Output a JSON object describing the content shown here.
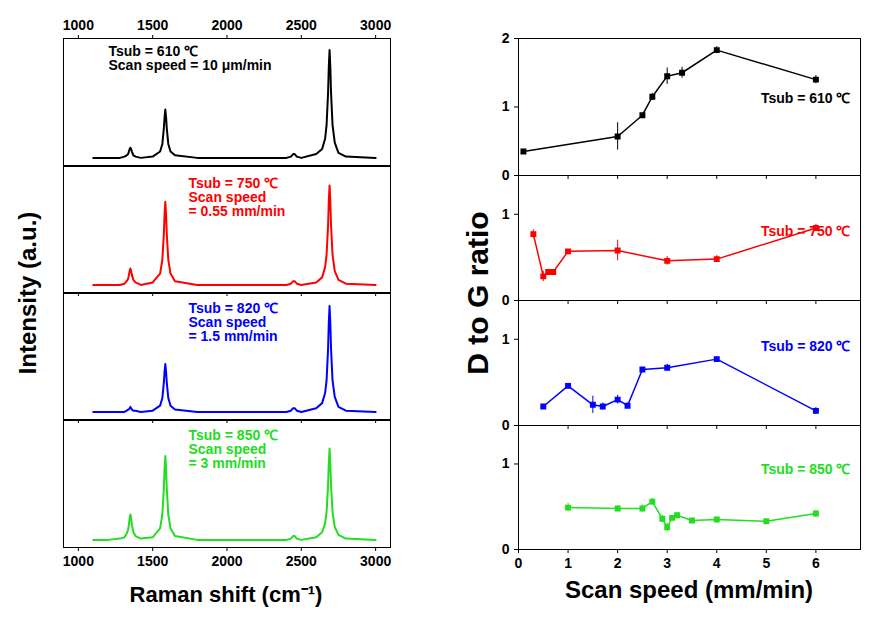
{
  "chart_data": [
    {
      "type": "line",
      "ylabel": "Intensity (a.u.)",
      "annotation": [
        "Tsub = 610 ℃",
        "Scan speed = 10 μm/min"
      ],
      "color": "#000000",
      "line_style": "solid",
      "x": [
        1100,
        1200,
        1280,
        1310,
        1325,
        1335,
        1340,
        1345,
        1350,
        1355,
        1360,
        1370,
        1385,
        1420,
        1500,
        1550,
        1565,
        1575,
        1580,
        1585,
        1590,
        1595,
        1605,
        1620,
        1650,
        1800,
        2000,
        2200,
        2400,
        2430,
        2445,
        2455,
        2470,
        2500,
        2600,
        2640,
        2660,
        2670,
        2680,
        2685,
        2690,
        2695,
        2700,
        2710,
        2725,
        2750,
        2800,
        3000
      ],
      "values": [
        0.06,
        0.06,
        0.06,
        0.07,
        0.08,
        0.09,
        0.11,
        0.13,
        0.14,
        0.13,
        0.11,
        0.08,
        0.07,
        0.06,
        0.07,
        0.11,
        0.17,
        0.29,
        0.38,
        0.44,
        0.38,
        0.29,
        0.17,
        0.11,
        0.08,
        0.06,
        0.06,
        0.06,
        0.06,
        0.07,
        0.09,
        0.09,
        0.07,
        0.06,
        0.09,
        0.13,
        0.21,
        0.32,
        0.57,
        0.78,
        0.91,
        0.78,
        0.57,
        0.32,
        0.18,
        0.1,
        0.07,
        0.06
      ],
      "xlim": [
        900,
        3100
      ],
      "xticks": [
        1000,
        1500,
        2000,
        2500,
        3000
      ],
      "ylim": [
        0,
        1
      ],
      "tick_labels": "x"
    },
    {
      "type": "line",
      "annotation": [
        "Tsub = 750 ℃",
        "Scan speed",
        "= 0.55 mm/min"
      ],
      "color": "#ff0000",
      "line_style": "solid",
      "x": [
        1100,
        1200,
        1280,
        1310,
        1325,
        1335,
        1340,
        1345,
        1350,
        1355,
        1360,
        1370,
        1385,
        1420,
        1500,
        1550,
        1565,
        1575,
        1580,
        1585,
        1590,
        1595,
        1605,
        1620,
        1650,
        1800,
        2000,
        2200,
        2400,
        2430,
        2445,
        2455,
        2470,
        2500,
        2600,
        2640,
        2660,
        2670,
        2680,
        2685,
        2690,
        2695,
        2700,
        2710,
        2725,
        2750,
        2800,
        3000
      ],
      "values": [
        0.06,
        0.06,
        0.06,
        0.07,
        0.09,
        0.11,
        0.14,
        0.17,
        0.19,
        0.17,
        0.14,
        0.1,
        0.08,
        0.06,
        0.08,
        0.15,
        0.26,
        0.46,
        0.62,
        0.72,
        0.62,
        0.46,
        0.26,
        0.15,
        0.09,
        0.06,
        0.06,
        0.06,
        0.06,
        0.07,
        0.09,
        0.09,
        0.07,
        0.06,
        0.08,
        0.12,
        0.2,
        0.3,
        0.53,
        0.73,
        0.85,
        0.73,
        0.53,
        0.3,
        0.17,
        0.1,
        0.07,
        0.06
      ],
      "xlim": [
        900,
        3100
      ],
      "xticks": [
        1000,
        1500,
        2000,
        2500,
        3000
      ],
      "ylim": [
        0,
        1
      ],
      "tick_labels": false
    },
    {
      "type": "line",
      "annotation": [
        "Tsub = 820 ℃",
        "Scan speed",
        "= 1.5 mm/min"
      ],
      "color": "#0000ff",
      "line_style": "solid",
      "x": [
        1100,
        1200,
        1280,
        1310,
        1325,
        1335,
        1340,
        1345,
        1350,
        1355,
        1360,
        1370,
        1385,
        1420,
        1500,
        1550,
        1565,
        1575,
        1580,
        1585,
        1590,
        1595,
        1605,
        1620,
        1650,
        1800,
        2000,
        2200,
        2400,
        2430,
        2445,
        2455,
        2470,
        2500,
        2600,
        2640,
        2660,
        2670,
        2680,
        2685,
        2690,
        2695,
        2700,
        2710,
        2725,
        2750,
        2800,
        3000
      ],
      "values": [
        0.06,
        0.06,
        0.06,
        0.06,
        0.07,
        0.08,
        0.08,
        0.09,
        0.1,
        0.09,
        0.08,
        0.07,
        0.07,
        0.06,
        0.07,
        0.11,
        0.17,
        0.29,
        0.38,
        0.44,
        0.38,
        0.29,
        0.17,
        0.11,
        0.08,
        0.06,
        0.06,
        0.06,
        0.06,
        0.07,
        0.09,
        0.09,
        0.07,
        0.06,
        0.09,
        0.13,
        0.21,
        0.31,
        0.56,
        0.77,
        0.9,
        0.77,
        0.56,
        0.31,
        0.18,
        0.1,
        0.07,
        0.06
      ],
      "xlim": [
        900,
        3100
      ],
      "xticks": [
        1000,
        1500,
        2000,
        2500,
        3000
      ],
      "ylim": [
        0,
        1
      ],
      "tick_labels": false
    },
    {
      "type": "line",
      "xlabel": "Raman shift (cm⁻¹)",
      "annotation": [
        "Tsub = 850 ℃",
        "Scan speed",
        "= 3 mm/min"
      ],
      "color": "#22dd22",
      "line_style": "solid",
      "x": [
        1100,
        1200,
        1280,
        1310,
        1325,
        1335,
        1340,
        1345,
        1350,
        1355,
        1360,
        1370,
        1385,
        1420,
        1500,
        1550,
        1565,
        1575,
        1580,
        1585,
        1590,
        1595,
        1605,
        1620,
        1650,
        1800,
        2000,
        2200,
        2400,
        2430,
        2445,
        2455,
        2470,
        2500,
        2600,
        2640,
        2660,
        2670,
        2680,
        2685,
        2690,
        2695,
        2700,
        2710,
        2725,
        2750,
        2800,
        3000
      ],
      "values": [
        0.06,
        0.06,
        0.07,
        0.08,
        0.11,
        0.14,
        0.18,
        0.23,
        0.26,
        0.23,
        0.18,
        0.12,
        0.09,
        0.07,
        0.08,
        0.15,
        0.26,
        0.46,
        0.62,
        0.72,
        0.62,
        0.46,
        0.26,
        0.15,
        0.09,
        0.06,
        0.06,
        0.06,
        0.06,
        0.07,
        0.09,
        0.09,
        0.07,
        0.06,
        0.08,
        0.12,
        0.19,
        0.28,
        0.49,
        0.67,
        0.78,
        0.67,
        0.49,
        0.28,
        0.16,
        0.1,
        0.07,
        0.06
      ],
      "xlim": [
        900,
        3100
      ],
      "xticks": [
        1000,
        1500,
        2000,
        2500,
        3000
      ],
      "ylim": [
        0,
        1
      ],
      "tick_labels": "x"
    },
    {
      "type": "line",
      "ylabel": "D to G ratio",
      "annotation": [
        "Tsub = 610 ℃"
      ],
      "color": "#000000",
      "marker": "square",
      "line_style": "solid",
      "x": [
        0.1,
        2.0,
        2.5,
        2.7,
        3.0,
        3.3,
        4.0,
        6.0
      ],
      "values": [
        0.35,
        0.57,
        0.88,
        1.15,
        1.45,
        1.5,
        1.83,
        1.4
      ],
      "errors": [
        0.02,
        0.2,
        0.03,
        0.05,
        0.12,
        0.08,
        0.05,
        0.06
      ],
      "xlim": [
        0,
        6.9
      ],
      "xticks": [
        0,
        1,
        2,
        3,
        4,
        5,
        6
      ],
      "ylim": [
        0,
        2
      ],
      "yticks": [
        0,
        1,
        2
      ],
      "tick_labels": "y"
    },
    {
      "type": "line",
      "annotation": [
        "Tsub = 750 ℃"
      ],
      "color": "#ff0000",
      "marker": "square",
      "line_style": "solid",
      "x": [
        0.3,
        0.5,
        0.6,
        0.7,
        1.0,
        2.0,
        3.0,
        4.0,
        6.0
      ],
      "values": [
        0.77,
        0.28,
        0.33,
        0.33,
        0.57,
        0.58,
        0.46,
        0.48,
        0.84
      ],
      "errors": [
        0.05,
        0.06,
        0.03,
        0.02,
        0.02,
        0.12,
        0.05,
        0.04,
        0.04
      ],
      "xlim": [
        0,
        6.9
      ],
      "xticks": [
        0,
        1,
        2,
        3,
        4,
        5,
        6
      ],
      "ylim": [
        0,
        1.45
      ],
      "yticks": [
        0,
        1
      ],
      "tick_labels": "y"
    },
    {
      "type": "line",
      "annotation": [
        "Tsub = 820 ℃"
      ],
      "color": "#0000ff",
      "marker": "square",
      "line_style": "solid",
      "x": [
        0.5,
        1.0,
        1.5,
        1.7,
        2.0,
        2.2,
        2.5,
        3.0,
        4.0,
        6.0
      ],
      "values": [
        0.22,
        0.46,
        0.24,
        0.22,
        0.3,
        0.23,
        0.65,
        0.67,
        0.77,
        0.17
      ],
      "errors": [
        0.02,
        0.03,
        0.1,
        0.04,
        0.05,
        0.03,
        0.02,
        0.04,
        0.02,
        0.04
      ],
      "xlim": [
        0,
        6.9
      ],
      "xticks": [
        0,
        1,
        2,
        3,
        4,
        5,
        6
      ],
      "ylim": [
        0,
        1.45
      ],
      "yticks": [
        0,
        1
      ],
      "tick_labels": "y"
    },
    {
      "type": "line",
      "xlabel": "Scan speed (mm/min)",
      "annotation": [
        "Tsub = 850 ℃"
      ],
      "color": "#22dd22",
      "marker": "square",
      "line_style": "solid",
      "x": [
        1.0,
        2.0,
        2.5,
        2.7,
        2.9,
        3.0,
        3.1,
        3.2,
        3.5,
        4.0,
        5.0,
        6.0
      ],
      "values": [
        0.49,
        0.48,
        0.48,
        0.56,
        0.36,
        0.26,
        0.37,
        0.4,
        0.34,
        0.35,
        0.33,
        0.42
      ],
      "errors": [
        0.05,
        0.03,
        0.04,
        0.04,
        0.04,
        0.05,
        0.03,
        0.03,
        0.02,
        0.02,
        0.02,
        0.04
      ],
      "xlim": [
        0,
        6.9
      ],
      "xticks": [
        0,
        1,
        2,
        3,
        4,
        5,
        6
      ],
      "ylim": [
        0,
        1.45
      ],
      "yticks": [
        0,
        1
      ],
      "tick_labels": true
    }
  ]
}
